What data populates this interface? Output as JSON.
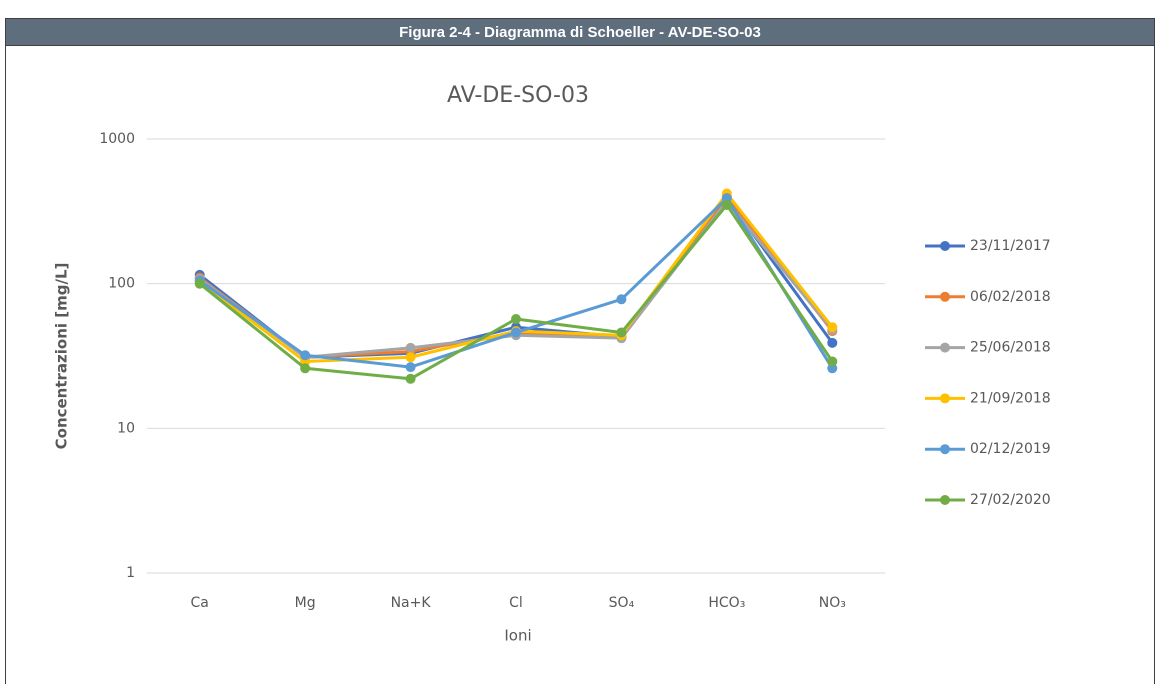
{
  "header": {
    "title": "Figura 2-4 - Diagramma di Schoeller - AV-DE-SO-03"
  },
  "chart_data": {
    "type": "line",
    "title": "AV-DE-SO-03",
    "x_label": "Ioni",
    "y_label": "Concentrazioni [mg/L]",
    "categories": [
      "Ca",
      "Mg",
      "Na+K",
      "Cl",
      "SO₄",
      "HCO₃",
      "NO₃"
    ],
    "log_scale": true,
    "grid": true,
    "legend": "right",
    "ylim": [
      1,
      1000
    ],
    "yticks": [
      1,
      10,
      100,
      1000
    ],
    "series": [
      {
        "name": "23/11/2017",
        "color": "#4472c4",
        "values": [
          115,
          31,
          33,
          50,
          43,
          390,
          39
        ]
      },
      {
        "name": "06/02/2018",
        "color": "#ed7d31",
        "values": [
          110,
          31,
          34,
          46,
          43,
          400,
          47
        ]
      },
      {
        "name": "25/06/2018",
        "color": "#a5a5a5",
        "values": [
          108,
          31,
          36,
          44,
          42,
          370,
          48
        ]
      },
      {
        "name": "21/09/2018",
        "color": "#ffc000",
        "values": [
          103,
          29,
          31,
          47,
          44,
          420,
          50
        ]
      },
      {
        "name": "02/12/2019",
        "color": "#5b9bd5",
        "values": [
          105,
          32,
          26.5,
          46,
          78,
          390,
          26
        ]
      },
      {
        "name": "27/02/2020",
        "color": "#70ad47",
        "values": [
          100,
          26,
          22,
          57,
          46,
          350,
          29
        ]
      }
    ]
  }
}
